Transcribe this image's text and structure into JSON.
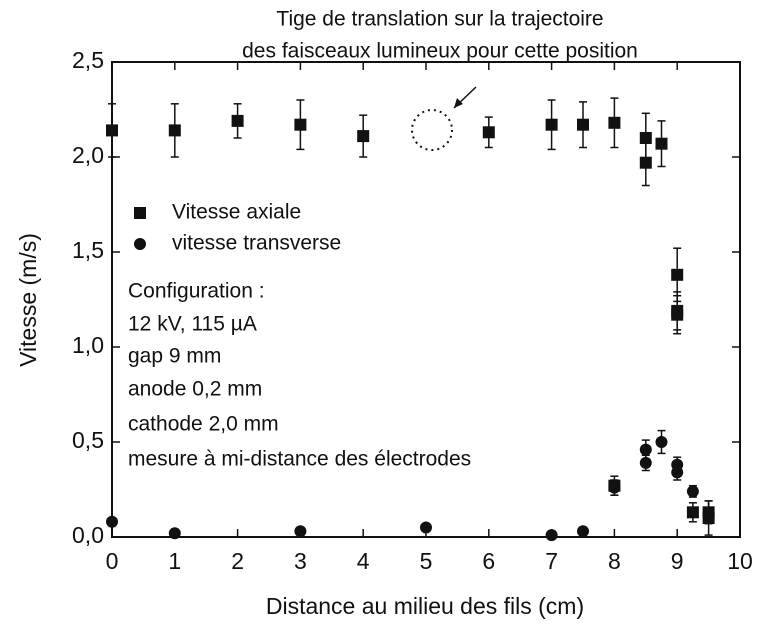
{
  "chart_data": {
    "type": "scatter",
    "xlabel": "Distance au milieu des fils   (cm)",
    "ylabel": "Vitesse   (m/s)",
    "annotation": [
      "Tige de translation sur la trajectoire",
      "des faisceaux lumineux pour cette position"
    ],
    "notes": [
      "Configuration :",
      "12 kV, 115 µA",
      "gap 9 mm",
      "anode 0,2 mm",
      "cathode 2,0 mm",
      "mesure à mi-distance des électrodes"
    ],
    "xlim": [
      0,
      10
    ],
    "ylim": [
      0,
      2.5
    ],
    "xticks": [
      0,
      1,
      2,
      3,
      4,
      5,
      6,
      7,
      8,
      9,
      10
    ],
    "yticks": [
      {
        "value": 0,
        "label": "0,0"
      },
      {
        "value": 0.5,
        "label": "0,5"
      },
      {
        "value": 1,
        "label": "1,0"
      },
      {
        "value": 1.5,
        "label": "1,5"
      },
      {
        "value": 2,
        "label": "2,0"
      },
      {
        "value": 2.5,
        "label": "2,5"
      }
    ],
    "series": [
      {
        "name": "Vitesse axiale",
        "marker": "square",
        "color": "#111111",
        "x": [
          0,
          1,
          2,
          3,
          4,
          6,
          7,
          7.5,
          8,
          8.5,
          8.5,
          8.75,
          9,
          9,
          9,
          8,
          9.25,
          9.5,
          9.5
        ],
        "values": [
          2.14,
          2.14,
          2.19,
          2.17,
          2.11,
          2.13,
          2.17,
          2.17,
          2.18,
          2.1,
          1.97,
          2.07,
          1.38,
          1.19,
          1.17,
          0.27,
          0.13,
          0.1,
          0.13
        ],
        "errors": [
          0.14,
          0.14,
          0.09,
          0.13,
          0.11,
          0.08,
          0.13,
          0.12,
          0.13,
          0.13,
          0.12,
          0.12,
          0.14,
          0.1,
          0.1,
          0.05,
          0.05,
          0.09,
          0.06
        ]
      },
      {
        "name": "vitesse transverse",
        "marker": "circle",
        "color": "#111111",
        "x": [
          0,
          1,
          3,
          5,
          7,
          7.5,
          8,
          8.5,
          8.5,
          8.75,
          9,
          9,
          9.25,
          9.5
        ],
        "values": [
          0.08,
          0.02,
          0.03,
          0.05,
          0.01,
          0.03,
          0.26,
          0.46,
          0.39,
          0.5,
          0.38,
          0.34,
          0.24,
          0.12
        ],
        "errors": [
          0.02,
          0.02,
          0.02,
          0.02,
          0.02,
          0.02,
          0.04,
          0.05,
          0.04,
          0.06,
          0.04,
          0.04,
          0.03,
          0.03
        ]
      }
    ]
  }
}
